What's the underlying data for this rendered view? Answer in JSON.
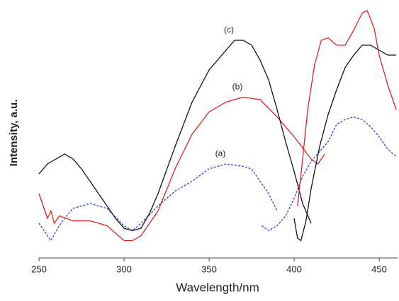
{
  "chart_data": {
    "type": "line",
    "xlabel": "Wavelength/nm",
    "ylabel": "Intensity, a.u.",
    "xlim": [
      250,
      460
    ],
    "xticks": [
      250,
      300,
      350,
      400,
      450
    ],
    "ylim": [
      0,
      100
    ],
    "annotations": [
      "(a)",
      "(b)",
      "(c)"
    ],
    "series": [
      {
        "color": "#2a3fd0",
        "dashed": true,
        "x": [
          250,
          254,
          257,
          261,
          265,
          270,
          280,
          290,
          300,
          305,
          310,
          320,
          330,
          340,
          350,
          360,
          370,
          375,
          380,
          385,
          390
        ],
        "values": [
          14,
          10,
          7,
          12,
          16,
          20,
          22,
          20,
          13,
          11,
          14,
          21,
          27,
          31,
          36,
          38,
          37,
          36,
          31,
          26,
          19
        ]
      },
      {
        "color": "#dd2020",
        "dashed": false,
        "x": [
          250,
          253,
          255,
          257,
          259,
          262,
          270,
          280,
          290,
          300,
          305,
          310,
          320,
          330,
          340,
          350,
          360,
          370,
          380,
          390,
          400,
          410,
          414,
          418
        ],
        "values": [
          26,
          20,
          16,
          19,
          14,
          17,
          15,
          15,
          13,
          7,
          7,
          9,
          19,
          36,
          50,
          59,
          63,
          65,
          64,
          57,
          49,
          40,
          38,
          42
        ]
      },
      {
        "color": "#111111",
        "dashed": false,
        "x": [
          250,
          255,
          260,
          265,
          270,
          275,
          280,
          285,
          290,
          295,
          300,
          305,
          310,
          315,
          320,
          330,
          340,
          350,
          360,
          365,
          370,
          375,
          380,
          385,
          390,
          395,
          400,
          405,
          410
        ],
        "values": [
          34,
          38,
          40,
          42,
          40,
          36,
          31,
          26,
          21,
          16,
          12,
          11,
          12,
          18,
          26,
          45,
          63,
          76,
          84,
          88,
          88,
          86,
          80,
          72,
          60,
          47,
          35,
          22,
          14
        ]
      },
      {
        "color": "#2a3fd0",
        "dashed": true,
        "x": [
          381,
          385,
          390,
          395,
          400,
          405,
          410,
          420,
          425,
          430,
          435,
          440,
          445,
          450,
          455,
          460
        ],
        "values": [
          13,
          11,
          13,
          17,
          24,
          33,
          39,
          47,
          54,
          56,
          57,
          56,
          53,
          49,
          44,
          41
        ]
      },
      {
        "color": "#dd2020",
        "dashed": false,
        "x": [
          402,
          405,
          408,
          412,
          416,
          420,
          425,
          430,
          435,
          440,
          443,
          447,
          450,
          455,
          460
        ],
        "values": [
          21,
          40,
          60,
          78,
          88,
          89,
          86,
          86,
          92,
          99,
          100,
          93,
          82,
          70,
          60
        ]
      },
      {
        "color": "#111111",
        "dashed": false,
        "x": [
          400,
          402,
          404,
          407,
          410,
          415,
          420,
          425,
          430,
          435,
          440,
          445,
          450,
          455,
          460
        ],
        "values": [
          16,
          8,
          7,
          15,
          28,
          45,
          58,
          68,
          77,
          82,
          86,
          86,
          84,
          82,
          82
        ]
      }
    ]
  }
}
